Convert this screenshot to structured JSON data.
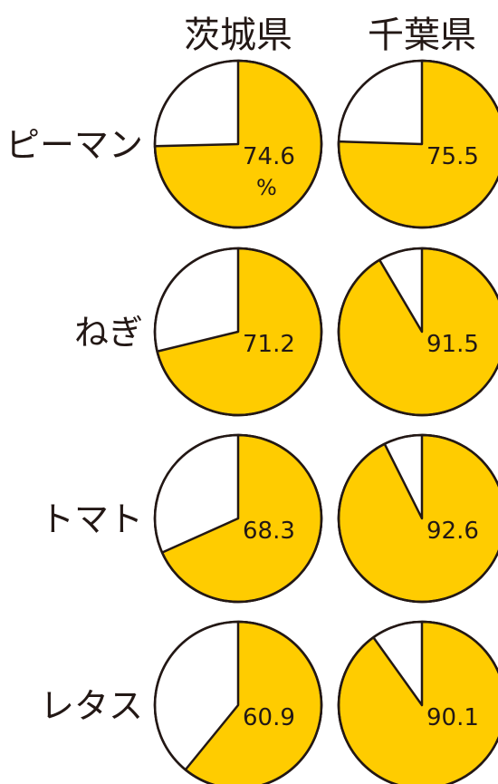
{
  "chart_data": {
    "type": "pie",
    "columns": [
      "茨城県",
      "千葉県"
    ],
    "rows": [
      "ピーマン",
      "ねぎ",
      "トマト",
      "レタス"
    ],
    "values": [
      [
        74.6,
        75.5
      ],
      [
        71.2,
        91.5
      ],
      [
        68.3,
        92.6
      ],
      [
        60.9,
        90.1
      ]
    ],
    "unit": "%",
    "colors": {
      "fill": "#FFCC00",
      "rest": "#FFFFFF",
      "stroke": "#231815"
    }
  }
}
